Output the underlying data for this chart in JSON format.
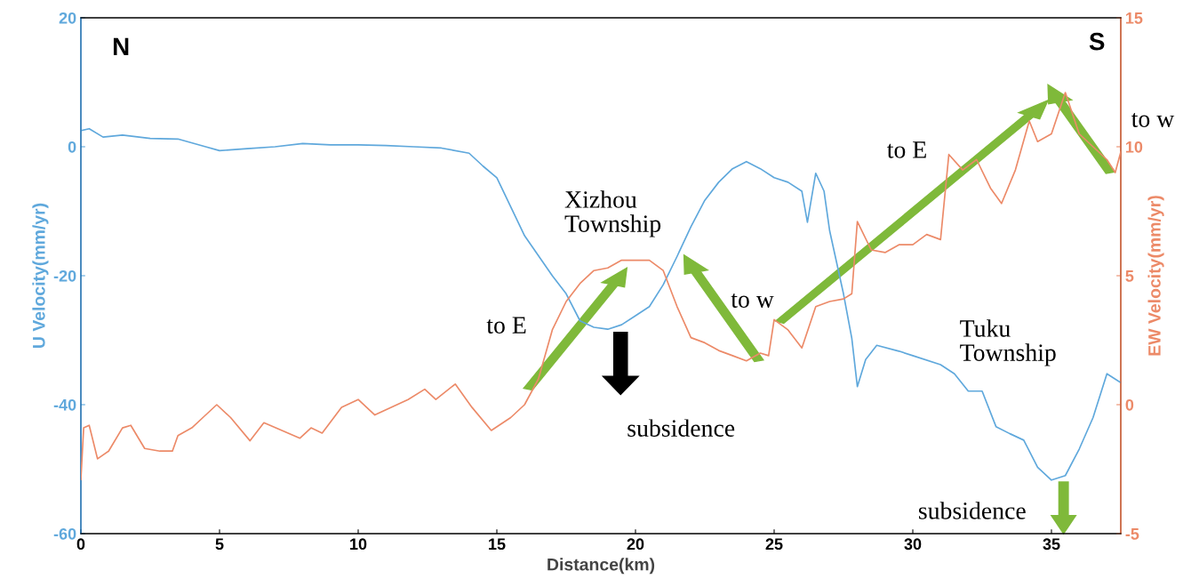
{
  "chart_data": {
    "type": "line",
    "xlabel": "Distance(km)",
    "ylabel": "U Velocity(mm/yr)",
    "y2label": "EW Velocity(mm/yr)",
    "xlim": [
      0,
      37.5
    ],
    "xticks": [
      0,
      5,
      10,
      15,
      20,
      25,
      30,
      35
    ],
    "ylim": [
      -60,
      20
    ],
    "yticks": [
      -60,
      -40,
      -20,
      0,
      20
    ],
    "y2lim": [
      -5,
      15
    ],
    "y2ticks": [
      -5,
      0,
      5,
      10,
      15
    ],
    "grid": false,
    "legend": false,
    "series": [
      {
        "color": "#5fa8dc",
        "x": [
          0,
          0.3,
          0.8,
          1.5,
          2.5,
          3.5,
          4.5,
          5,
          6,
          7,
          8,
          9,
          10,
          11,
          12,
          13,
          14,
          14.5,
          15,
          16,
          17,
          17.5,
          18,
          18.5,
          19,
          19.5,
          20,
          20.5,
          21,
          21.5,
          22,
          22.5,
          23,
          23.5,
          24,
          24.5,
          25,
          25.5,
          26,
          26.2,
          26.5,
          26.8,
          27,
          27.5,
          27.8,
          28,
          28.3,
          28.7,
          29.5,
          30,
          31,
          31.5,
          32,
          32.5,
          33,
          33.5,
          34,
          34.5,
          35,
          35.5,
          36,
          36.5,
          37,
          37.5
        ],
        "values": [
          2.5,
          2.8,
          1.5,
          1.8,
          1.3,
          1.2,
          0,
          -0.6,
          -0.3,
          0,
          0.5,
          0.3,
          0.3,
          0.2,
          0,
          -0.2,
          -1,
          -3,
          -4.8,
          -13.8,
          -20,
          -22.8,
          -27,
          -28,
          -28.3,
          -27.6,
          -26.2,
          -24.8,
          -21.4,
          -17,
          -12.4,
          -8.3,
          -5.5,
          -3.4,
          -2.3,
          -3.4,
          -4.8,
          -5.5,
          -6.9,
          -11.7,
          -4.1,
          -6.9,
          -13,
          -22.8,
          -29.7,
          -37.2,
          -33,
          -30.8,
          -31.7,
          -32.4,
          -33.8,
          -35.2,
          -37.9,
          -37.9,
          -43.4,
          -44.5,
          -45.5,
          -49.7,
          -51.7,
          -51,
          -46.9,
          -42,
          -35.2,
          -36.6
        ]
      },
      {
        "color": "#ec8a68",
        "axis": "y2",
        "x": [
          0,
          0.1,
          0.3,
          0.6,
          1.0,
          1.5,
          1.8,
          2.3,
          2.85,
          3.3,
          3.5,
          4.0,
          4.4,
          4.9,
          5.4,
          6.1,
          6.6,
          7.9,
          8.3,
          8.7,
          9.4,
          10.0,
          10.6,
          11.8,
          12.4,
          12.8,
          13.5,
          14.1,
          14.8,
          15.5,
          16,
          16.5,
          17,
          17.5,
          18,
          18.5,
          19,
          19.5,
          20,
          20.5,
          21,
          21.5,
          22,
          22.5,
          23,
          23.5,
          24,
          24.5,
          24.8,
          25,
          25.5,
          26,
          26.5,
          27,
          27.5,
          27.8,
          28,
          28.5,
          29,
          29.5,
          30,
          30.5,
          31,
          31.3,
          31.8,
          32.3,
          32.8,
          33.2,
          33.7,
          34.2,
          34.5,
          35,
          35.5,
          36,
          36.5,
          37,
          37.3,
          37.5
        ],
        "values": [
          -2.9,
          -0.9,
          -0.8,
          -2.1,
          -1.8,
          -0.9,
          -0.8,
          -1.7,
          -1.8,
          -1.8,
          -1.2,
          -0.9,
          -0.5,
          0,
          -0.5,
          -1.4,
          -0.7,
          -1.3,
          -0.9,
          -1.1,
          -0.1,
          0.2,
          -0.4,
          0.2,
          0.6,
          0.2,
          0.8,
          -0.1,
          -1.0,
          -0.5,
          0,
          1.0,
          2.9,
          4.0,
          4.7,
          5.2,
          5.3,
          5.6,
          5.6,
          5.6,
          5.2,
          3.8,
          2.6,
          2.4,
          2.1,
          1.9,
          1.7,
          2.0,
          1.9,
          3.3,
          2.9,
          2.2,
          3.8,
          4.0,
          4.1,
          4.3,
          7.1,
          6.0,
          5.9,
          6.2,
          6.2,
          6.6,
          6.4,
          9.7,
          9.1,
          9.5,
          8.4,
          7.8,
          9.1,
          11.0,
          10.2,
          10.5,
          12.1,
          10.5,
          10.0,
          9.5,
          9.0,
          9.8
        ]
      }
    ],
    "annotations": [
      "N",
      "S",
      "Xizhou\nTownship",
      "to E",
      "subsidence",
      "to w",
      "to E",
      "to w",
      "Tuku\nTownship",
      "subsidence"
    ]
  }
}
